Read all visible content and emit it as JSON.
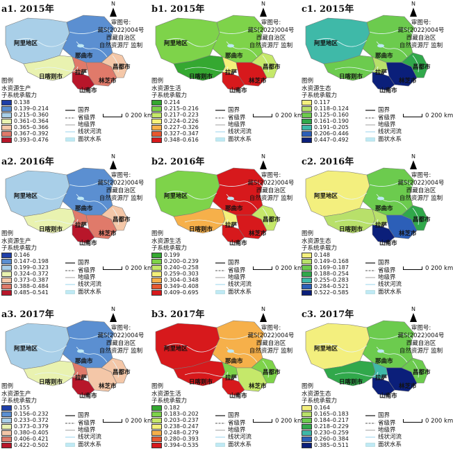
{
  "approval_lines": [
    "审图号:",
    "藏S(2022)004号",
    "西藏自治区",
    "自然资源厅 监制"
  ],
  "north_label": "N",
  "legend_header": "图例",
  "scale_label": "0 200 km",
  "boundary_items": [
    {
      "label": "国界",
      "type": "national"
    },
    {
      "label": "省级界",
      "type": "provincial"
    },
    {
      "label": "地级界",
      "type": "prefectural"
    },
    {
      "label": "线状河流",
      "type": "river"
    },
    {
      "label": "面状水系",
      "type": "water"
    }
  ],
  "region_names": {
    "ali": "阿里地区",
    "naqu": "那曲市",
    "rikaze": "日喀则市",
    "lasa": "拉萨",
    "shannan": "山南市",
    "linzhi": "林芝市",
    "changdu": "昌都市"
  },
  "panels": [
    {
      "title": "a1. 2015年",
      "legend_title": [
        "水资源生产",
        "子系统承载力"
      ],
      "classes": [
        {
          "label": "0.138",
          "color": "#1f3fa8"
        },
        {
          "label": "0.139–0.214",
          "color": "#5b8fd1"
        },
        {
          "label": "0.215–0.360",
          "color": "#a9cfe8"
        },
        {
          "label": "0.361–0.364",
          "color": "#e9f2b0"
        },
        {
          "label": "0.365–0.366",
          "color": "#f4c7a8"
        },
        {
          "label": "0.367–0.392",
          "color": "#e07a6a"
        },
        {
          "label": "0.393–0.476",
          "color": "#b8162a"
        }
      ],
      "regions": {
        "ali": 2,
        "naqu": 1,
        "rikaze": 3,
        "lasa": 5,
        "shannan": 6,
        "linzhi": 5,
        "changdu": 4
      }
    },
    {
      "title": "b1. 2015年",
      "legend_title": [
        "水资源生活",
        "子系统承载力"
      ],
      "classes": [
        {
          "label": "0.214",
          "color": "#35a831"
        },
        {
          "label": "0.215–0.216",
          "color": "#7ed34a"
        },
        {
          "label": "0.217–0.223",
          "color": "#c5e86a"
        },
        {
          "label": "0.224–0.226",
          "color": "#f4f07a"
        },
        {
          "label": "0.227–0.326",
          "color": "#f6b04a"
        },
        {
          "label": "0.327–0.347",
          "color": "#e8582f"
        },
        {
          "label": "0.348–0.616",
          "color": "#d7191c"
        }
      ],
      "regions": {
        "ali": 1,
        "naqu": 1,
        "rikaze": 0,
        "lasa": 3,
        "shannan": 6,
        "linzhi": 6,
        "changdu": 2
      }
    },
    {
      "title": "c1. 2015年",
      "legend_title": [
        "水资源生态",
        "子系统承载力"
      ],
      "classes": [
        {
          "label": "0.117",
          "color": "#f3ef7e"
        },
        {
          "label": "0.118–0.124",
          "color": "#b8e06a"
        },
        {
          "label": "0.125–0.160",
          "color": "#6ccb4e"
        },
        {
          "label": "0.161–0.190",
          "color": "#31a84b"
        },
        {
          "label": "0.191–0.205",
          "color": "#3fb9a8"
        },
        {
          "label": "0.206–0.446",
          "color": "#2c5fb8"
        },
        {
          "label": "0.447–0.492",
          "color": "#0b1f7a"
        }
      ],
      "regions": {
        "ali": 4,
        "naqu": 2,
        "rikaze": 2,
        "lasa": 1,
        "shannan": 6,
        "linzhi": 6,
        "changdu": 3
      }
    },
    {
      "title": "a2. 2016年",
      "legend_title": [
        "水资源生产",
        "子系统承载力"
      ],
      "classes": [
        {
          "label": "0.146",
          "color": "#1f3fa8"
        },
        {
          "label": "0.147–0.198",
          "color": "#5b8fd1"
        },
        {
          "label": "0.199–0.323",
          "color": "#a9cfe8"
        },
        {
          "label": "0.324–0.372",
          "color": "#e9f2b0"
        },
        {
          "label": "0.373–0.387",
          "color": "#f4c7a8"
        },
        {
          "label": "0.388–0.484",
          "color": "#e07a6a"
        },
        {
          "label": "0.485–0.541",
          "color": "#b8162a"
        }
      ],
      "regions": {
        "ali": 2,
        "naqu": 1,
        "rikaze": 3,
        "lasa": 5,
        "shannan": 6,
        "linzhi": 5,
        "changdu": 4
      }
    },
    {
      "title": "b2. 2016年",
      "legend_title": [
        "水资源生活",
        "子系统承载力"
      ],
      "classes": [
        {
          "label": "0.199",
          "color": "#35a831"
        },
        {
          "label": "0.200–0.239",
          "color": "#7ed34a"
        },
        {
          "label": "0.240–0.258",
          "color": "#c5e86a"
        },
        {
          "label": "0.259–0.303",
          "color": "#f4f07a"
        },
        {
          "label": "0.304–0.348",
          "color": "#f6b04a"
        },
        {
          "label": "0.349–0.408",
          "color": "#e8582f"
        },
        {
          "label": "0.409–0.695",
          "color": "#d7191c"
        }
      ],
      "regions": {
        "ali": 1,
        "naqu": 6,
        "rikaze": 4,
        "lasa": 3,
        "shannan": 6,
        "linzhi": 6,
        "changdu": 2
      }
    },
    {
      "title": "c2. 2016年",
      "legend_title": [
        "水资源生态",
        "子系统承载力"
      ],
      "classes": [
        {
          "label": "0.148",
          "color": "#f3ef7e"
        },
        {
          "label": "0.149–0.168",
          "color": "#b8e06a"
        },
        {
          "label": "0.169–0.187",
          "color": "#6ccb4e"
        },
        {
          "label": "0.188–0.254",
          "color": "#31a84b"
        },
        {
          "label": "0.255–0.283",
          "color": "#3fb9a8"
        },
        {
          "label": "0.284–0.521",
          "color": "#2c5fb8"
        },
        {
          "label": "0.522–0.585",
          "color": "#0b1f7a"
        }
      ],
      "regions": {
        "ali": 0,
        "naqu": 2,
        "rikaze": 1,
        "lasa": 1,
        "shannan": 6,
        "linzhi": 5,
        "changdu": 3
      }
    },
    {
      "title": "a3. 2017年",
      "legend_title": [
        "水资源生产",
        "子系统承载力"
      ],
      "classes": [
        {
          "label": "0.155",
          "color": "#1f3fa8"
        },
        {
          "label": "0.156–0.232",
          "color": "#5b8fd1"
        },
        {
          "label": "0.233–0.372",
          "color": "#a9cfe8"
        },
        {
          "label": "0.373–0.379",
          "color": "#e9f2b0"
        },
        {
          "label": "0.380–0.405",
          "color": "#f4c7a8"
        },
        {
          "label": "0.406–0.421",
          "color": "#e07a6a"
        },
        {
          "label": "0.422–0.502",
          "color": "#b8162a"
        }
      ],
      "regions": {
        "ali": 2,
        "naqu": 1,
        "rikaze": 3,
        "lasa": 5,
        "shannan": 6,
        "linzhi": 4,
        "changdu": 4
      }
    },
    {
      "title": "b3. 2017年",
      "legend_title": [
        "水资源生活",
        "子系统承载力"
      ],
      "classes": [
        {
          "label": "0.182",
          "color": "#35a831"
        },
        {
          "label": "0.183–0.202",
          "color": "#7ed34a"
        },
        {
          "label": "0.203–0.237",
          "color": "#c5e86a"
        },
        {
          "label": "0.238–0.247",
          "color": "#f4f07a"
        },
        {
          "label": "0.248–0.279",
          "color": "#f6b04a"
        },
        {
          "label": "0.280–0.393",
          "color": "#e8582f"
        },
        {
          "label": "0.394–0.535",
          "color": "#d7191c"
        }
      ],
      "regions": {
        "ali": 6,
        "naqu": 4,
        "rikaze": 6,
        "lasa": 1,
        "shannan": 6,
        "linzhi": 2,
        "changdu": 1
      }
    },
    {
      "title": "c3. 2017年",
      "legend_title": [
        "水资源生态",
        "子系统承载力"
      ],
      "classes": [
        {
          "label": "0.164",
          "color": "#f3ef7e"
        },
        {
          "label": "0.165–0.183",
          "color": "#b8e06a"
        },
        {
          "label": "0.184–0.217",
          "color": "#6ccb4e"
        },
        {
          "label": "0.218–0.229",
          "color": "#31a84b"
        },
        {
          "label": "0.230–0.259",
          "color": "#3fb9a8"
        },
        {
          "label": "0.260–0.384",
          "color": "#2c5fb8"
        },
        {
          "label": "0.385–0.511",
          "color": "#0b1f7a"
        }
      ],
      "regions": {
        "ali": 0,
        "naqu": 2,
        "rikaze": 3,
        "lasa": 4,
        "shannan": 6,
        "linzhi": 6,
        "changdu": 2
      }
    }
  ]
}
